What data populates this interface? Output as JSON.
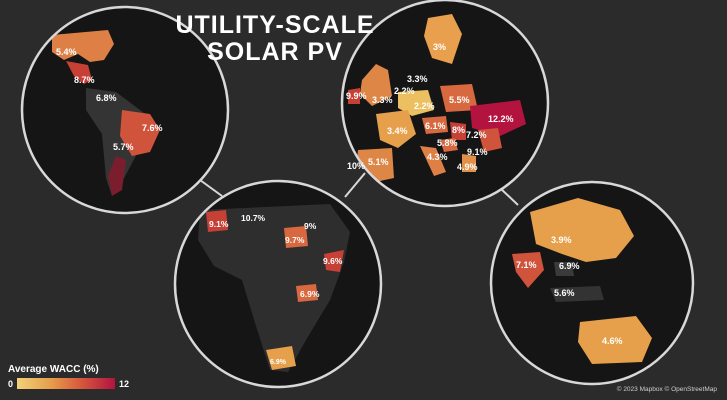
{
  "title_line1": "UTILITY-SCALE",
  "title_line2": "SOLAR PV",
  "legend": {
    "title": "Average WACC (%)",
    "min": "0",
    "max": "12",
    "colors": [
      "#f2d17a",
      "#e7a04c",
      "#d6553d",
      "#b2143f"
    ]
  },
  "credit": "© 2023 Mapbox © OpenStreetMap",
  "regions": {
    "americas": [
      "5.4%",
      "8.7%",
      "6.8%",
      "7.6%",
      "5.7%"
    ],
    "europe": [
      "3%",
      "3.3%",
      "2.2%",
      "9.9%",
      "3.3%",
      "2.2%",
      "5.5%",
      "12.2%",
      "6.1%",
      "8%",
      "7.2%",
      "3.4%",
      "5.8%",
      "9.1%",
      "10%",
      "5.1%",
      "4.3%",
      "4.9%"
    ],
    "africa": [
      "9.1%",
      "10.7%",
      "9%",
      "9.7%",
      "9.6%",
      "6.9%",
      "6.9%"
    ],
    "asia_pacific": [
      "3.9%",
      "7.1%",
      "6.9%",
      "5.6%",
      "4.6%"
    ]
  }
}
